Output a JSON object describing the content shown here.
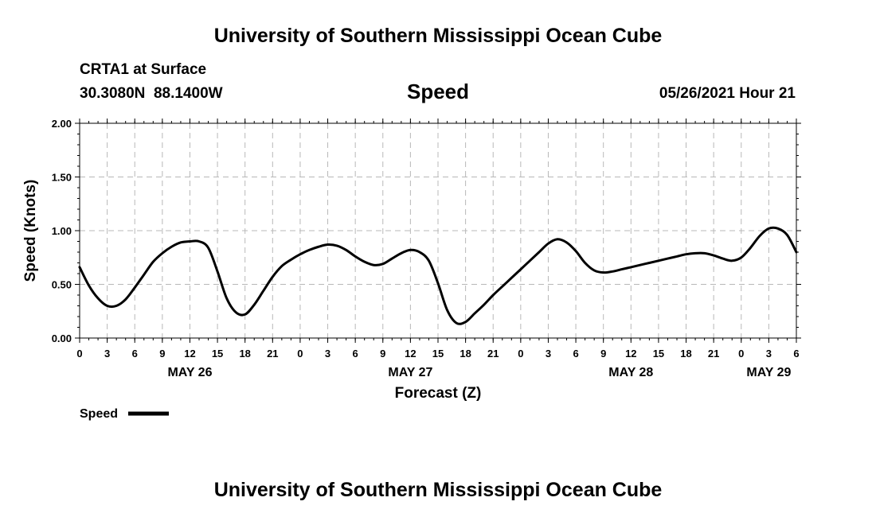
{
  "page": {
    "header_title": "University of Southern Mississippi Ocean Cube",
    "footer_title": "University of Southern Mississippi Ocean Cube",
    "station": "CRTA1 at Surface",
    "coordinates": "30.3080N  88.1400W",
    "issued": "05/26/2021 Hour 21"
  },
  "chart_data": {
    "type": "line",
    "title": "Speed",
    "xlabel": "Forecast (Z)",
    "ylabel": "Speed (Knots)",
    "ylim": [
      0,
      2
    ],
    "yticks": [
      "0.00",
      "0.50",
      "1.00",
      "1.50",
      "2.00"
    ],
    "x_unit": "forecast hour from 00Z May 26",
    "xlim": [
      0,
      78
    ],
    "xticks": [
      {
        "hour": 0,
        "label": "0"
      },
      {
        "hour": 3,
        "label": "3"
      },
      {
        "hour": 6,
        "label": "6"
      },
      {
        "hour": 9,
        "label": "9"
      },
      {
        "hour": 12,
        "label": "12"
      },
      {
        "hour": 15,
        "label": "15"
      },
      {
        "hour": 18,
        "label": "18"
      },
      {
        "hour": 21,
        "label": "21"
      },
      {
        "hour": 24,
        "label": "0"
      },
      {
        "hour": 27,
        "label": "3"
      },
      {
        "hour": 30,
        "label": "6"
      },
      {
        "hour": 33,
        "label": "9"
      },
      {
        "hour": 36,
        "label": "12"
      },
      {
        "hour": 39,
        "label": "15"
      },
      {
        "hour": 42,
        "label": "18"
      },
      {
        "hour": 45,
        "label": "21"
      },
      {
        "hour": 48,
        "label": "0"
      },
      {
        "hour": 51,
        "label": "3"
      },
      {
        "hour": 54,
        "label": "6"
      },
      {
        "hour": 57,
        "label": "9"
      },
      {
        "hour": 60,
        "label": "12"
      },
      {
        "hour": 63,
        "label": "15"
      },
      {
        "hour": 66,
        "label": "18"
      },
      {
        "hour": 69,
        "label": "21"
      },
      {
        "hour": 72,
        "label": "0"
      },
      {
        "hour": 75,
        "label": "3"
      },
      {
        "hour": 78,
        "label": "6"
      }
    ],
    "date_labels": [
      {
        "hour": 12,
        "label": "MAY 26"
      },
      {
        "hour": 36,
        "label": "MAY 27"
      },
      {
        "hour": 60,
        "label": "MAY 28"
      },
      {
        "hour": 75,
        "label": "MAY 29"
      }
    ],
    "grid": true,
    "legend": {
      "label": "Speed",
      "placement": "bottom-left"
    },
    "series": [
      {
        "name": "Speed",
        "x": [
          0,
          1,
          2,
          3,
          4,
          5,
          6,
          7,
          8,
          9,
          10,
          11,
          12,
          13,
          14,
          15,
          16,
          17,
          18,
          19,
          20,
          21,
          22,
          23,
          24,
          25,
          26,
          27,
          28,
          29,
          30,
          31,
          32,
          33,
          34,
          35,
          36,
          37,
          38,
          39,
          40,
          41,
          42,
          43,
          44,
          45,
          46,
          47,
          48,
          49,
          50,
          51,
          52,
          53,
          54,
          55,
          56,
          57,
          58,
          59,
          60,
          61,
          62,
          63,
          64,
          65,
          66,
          67,
          68,
          69,
          70,
          71,
          72,
          73,
          74,
          75,
          76,
          77,
          78
        ],
        "values": [
          0.66,
          0.49,
          0.37,
          0.3,
          0.3,
          0.36,
          0.47,
          0.59,
          0.71,
          0.79,
          0.85,
          0.89,
          0.9,
          0.9,
          0.84,
          0.62,
          0.37,
          0.24,
          0.22,
          0.31,
          0.44,
          0.57,
          0.67,
          0.73,
          0.78,
          0.82,
          0.85,
          0.87,
          0.86,
          0.82,
          0.76,
          0.71,
          0.68,
          0.69,
          0.74,
          0.79,
          0.82,
          0.8,
          0.72,
          0.51,
          0.26,
          0.14,
          0.15,
          0.23,
          0.31,
          0.4,
          0.48,
          0.56,
          0.64,
          0.72,
          0.8,
          0.88,
          0.92,
          0.89,
          0.81,
          0.7,
          0.63,
          0.61,
          0.62,
          0.64,
          0.66,
          0.68,
          0.7,
          0.72,
          0.74,
          0.76,
          0.78,
          0.79,
          0.79,
          0.77,
          0.74,
          0.72,
          0.75,
          0.84,
          0.95,
          1.02,
          1.02,
          0.96,
          0.8
        ]
      }
    ]
  }
}
